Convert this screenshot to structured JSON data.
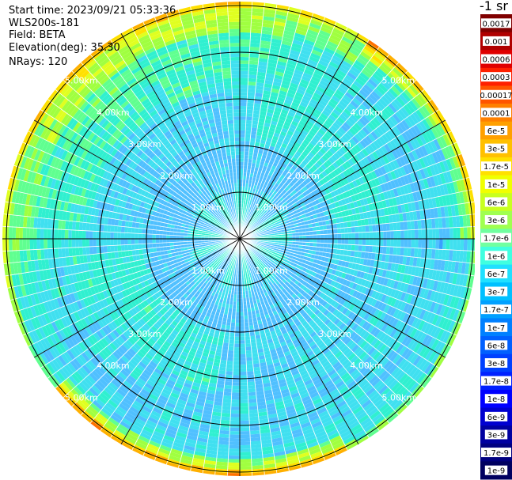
{
  "header": {
    "start_time": "Start time: 2023/09/21 05:33:36",
    "instrument": "WLS200s-181",
    "field": "Field: BETA",
    "elevation": "Elevation(deg): 35.30",
    "nrays": "NRays: 120"
  },
  "chart_data": {
    "type": "heatmap",
    "subtype": "ppi-polar",
    "field": "BETA",
    "n_rays": 120,
    "range_rings_km": [
      1,
      2,
      3,
      4,
      5
    ],
    "ring_labels": [
      "1.00km",
      "2.00km",
      "3.00km",
      "4.00km",
      "5.00km"
    ],
    "colorbar": {
      "unit": "-1 sr",
      "labels": [
        "0.0017",
        "0.001",
        "0.0006",
        "0.0003",
        "0.00017",
        "0.0001",
        "6e-5",
        "3e-5",
        "1.7e-5",
        "1e-5",
        "6e-6",
        "3e-6",
        "1.7e-6",
        "1e-6",
        "6e-7",
        "3e-7",
        "1.7e-7",
        "1e-7",
        "6e-8",
        "3e-8",
        "1.7e-8",
        "1e-8",
        "6e-9",
        "3e-9",
        "1.7e-9",
        "1e-9"
      ],
      "colors": [
        "#800000",
        "#b00000",
        "#e00000",
        "#ff2000",
        "#ff5500",
        "#ff8000",
        "#ffa000",
        "#ffc000",
        "#ffe000",
        "#f0ff00",
        "#c8ff20",
        "#a0ff50",
        "#70ffa0",
        "#40ffe0",
        "#20e0ff",
        "#00c0ff",
        "#00a0ff",
        "#0080ff",
        "#0060ff",
        "#0040ff",
        "#0020ff",
        "#0000ff",
        "#0000d0",
        "#0000a0",
        "#000080",
        "#000060"
      ]
    }
  },
  "colors": {
    "ring_stroke": "#000000",
    "label_color": "#ffffff"
  }
}
